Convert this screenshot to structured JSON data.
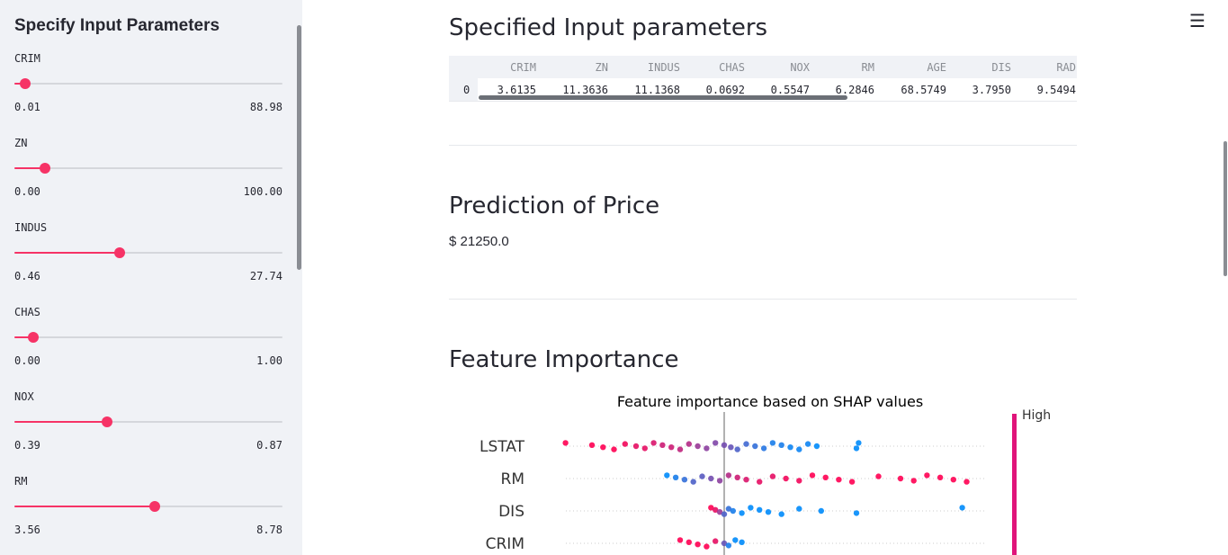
{
  "sidebar": {
    "title": "Specify Input Parameters",
    "accent": "#f63366",
    "sliders": [
      {
        "label": "CRIM",
        "min": "0.01",
        "max": "88.98",
        "value": 3.6135,
        "fraction": 0.04
      },
      {
        "label": "ZN",
        "min": "0.00",
        "max": "100.00",
        "value": 11.3636,
        "fraction": 0.114
      },
      {
        "label": "INDUS",
        "min": "0.46",
        "max": "27.74",
        "value": 11.1368,
        "fraction": 0.391
      },
      {
        "label": "CHAS",
        "min": "0.00",
        "max": "1.00",
        "value": 0.0692,
        "fraction": 0.07
      },
      {
        "label": "NOX",
        "min": "0.39",
        "max": "0.87",
        "value": 0.5547,
        "fraction": 0.345
      },
      {
        "label": "RM",
        "min": "3.56",
        "max": "8.78",
        "value": 6.2846,
        "fraction": 0.522
      }
    ]
  },
  "main": {
    "menu_icon": "hamburger-menu-icon",
    "input_section": {
      "title": "Specified Input parameters",
      "columns": [
        "CRIM",
        "ZN",
        "INDUS",
        "CHAS",
        "NOX",
        "RM",
        "AGE",
        "DIS",
        "RAD"
      ],
      "row_index": "0",
      "row": [
        "3.6135",
        "11.3636",
        "11.1368",
        "0.0692",
        "0.5547",
        "6.2846",
        "68.5749",
        "3.7950",
        "9.5494"
      ]
    },
    "prediction_section": {
      "title": "Prediction of Price",
      "value": "$ 21250.0"
    },
    "importance_section": {
      "title": "Feature Importance"
    }
  },
  "chart_data": {
    "type": "scatter",
    "title": "Feature importance based on SHAP values",
    "features": [
      "LSTAT",
      "RM",
      "DIS",
      "CRIM"
    ],
    "colorbar_label": "High",
    "colors": {
      "high": "#ff0052",
      "low": "#008bfb",
      "mid": "#8a3cd6"
    },
    "xlim": [
      -8,
      12
    ],
    "zero_line": 0,
    "series": [
      {
        "name": "LSTAT",
        "x": [
          -7.2,
          -6.0,
          -5.5,
          -5.0,
          -4.5,
          -4.0,
          -3.6,
          -3.2,
          -2.8,
          -2.4,
          -2.0,
          -1.6,
          -1.2,
          -0.8,
          -0.4,
          0.0,
          0.3,
          0.6,
          1.0,
          1.4,
          1.8,
          2.2,
          2.6,
          3.0,
          3.4,
          3.8,
          4.2,
          6.0,
          6.1
        ],
        "hue": [
          1,
          1,
          1,
          1,
          0.95,
          0.9,
          0.9,
          0.85,
          0.8,
          0.8,
          0.75,
          0.7,
          0.6,
          0.55,
          0.5,
          0.45,
          0.4,
          0.3,
          0.25,
          0.2,
          0.15,
          0.1,
          0.1,
          0.05,
          0.05,
          0.05,
          0.0,
          0.0,
          0.0
        ]
      },
      {
        "name": "RM",
        "x": [
          -2.6,
          -2.2,
          -1.8,
          -1.4,
          -1.0,
          -0.6,
          -0.2,
          0.2,
          0.6,
          1.0,
          1.6,
          2.2,
          2.8,
          3.4,
          4.0,
          4.6,
          5.2,
          5.8,
          7.0,
          8.0,
          8.6,
          9.2,
          9.8,
          10.4,
          11.0
        ],
        "hue": [
          0.0,
          0.1,
          0.2,
          0.3,
          0.35,
          0.45,
          0.55,
          0.7,
          0.8,
          0.85,
          0.9,
          0.9,
          0.95,
          0.95,
          1,
          1,
          1,
          1,
          1,
          1,
          1,
          1,
          1,
          1,
          1
        ]
      },
      {
        "name": "DIS",
        "x": [
          -0.6,
          -0.4,
          -0.2,
          0.0,
          0.2,
          0.4,
          0.8,
          1.2,
          1.6,
          2.0,
          2.6,
          3.4,
          4.4,
          6.0,
          10.8
        ],
        "hue": [
          1,
          0.9,
          0.6,
          0.3,
          0.2,
          0.1,
          0.0,
          0.0,
          0.0,
          0.0,
          0.0,
          0.0,
          0.0,
          0.0,
          0.0
        ]
      },
      {
        "name": "CRIM",
        "x": [
          -2.0,
          -1.6,
          -1.2,
          -0.8,
          -0.4,
          0.0,
          0.2,
          0.5,
          0.8
        ],
        "hue": [
          1,
          1,
          1,
          1,
          0.9,
          0.4,
          0.1,
          0.0,
          0.0
        ]
      }
    ]
  }
}
